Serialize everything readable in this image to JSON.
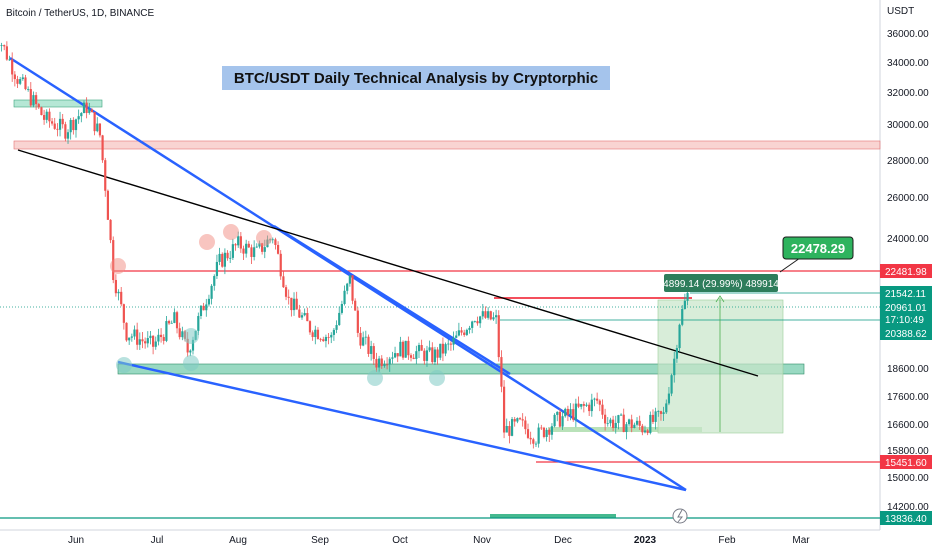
{
  "header": {
    "symbol_line": "Bitcoin / TetherUS, 1D, BINANCE"
  },
  "chart_data": {
    "type": "candlestick",
    "title": "BTC/USDT Daily Technical Analysis by Cryptorphic",
    "y_axis_unit": "USDT",
    "y_scale": "log",
    "y_ticks": [
      "36000.00",
      "34000.00",
      "32000.00",
      "30000.00",
      "28000.00",
      "26000.00",
      "24000.00",
      "18600.00",
      "17600.00",
      "16600.00",
      "15800.00",
      "15000.00",
      "14200.00"
    ],
    "x_ticks": [
      "Jun",
      "Jul",
      "Aug",
      "Sep",
      "Oct",
      "Nov",
      "Dec",
      "2023",
      "Feb",
      "Mar"
    ],
    "price_labels": [
      {
        "value": "22481.98",
        "color": "#f23645"
      },
      {
        "value": "21542.11",
        "color": "#089981"
      },
      {
        "value": "20961.01",
        "color": "#089981"
      },
      {
        "value": "17:10:49",
        "color": "#089981"
      },
      {
        "value": "20388.62",
        "color": "#089981"
      },
      {
        "value": "15451.60",
        "color": "#f23645"
      },
      {
        "value": "13836.40",
        "color": "#089981"
      }
    ],
    "annotations": {
      "target_callout": "22478.29",
      "measure_label": "4899.14 (29.99%) 489914"
    },
    "price_path": [
      [
        36500,
        "2022-05-01"
      ],
      [
        33000,
        "2022-05-10"
      ],
      [
        30500,
        "2022-05-20"
      ],
      [
        29800,
        "2022-05-28"
      ],
      [
        31200,
        "2022-06-05"
      ],
      [
        29500,
        "2022-06-10"
      ],
      [
        22500,
        "2022-06-15"
      ],
      [
        20000,
        "2022-06-20"
      ],
      [
        19500,
        "2022-06-30"
      ],
      [
        20500,
        "2022-07-08"
      ],
      [
        19300,
        "2022-07-13"
      ],
      [
        20800,
        "2022-07-18"
      ],
      [
        23000,
        "2022-07-25"
      ],
      [
        23800,
        "2022-08-01"
      ],
      [
        23400,
        "2022-08-08"
      ],
      [
        24200,
        "2022-08-14"
      ],
      [
        21300,
        "2022-08-20"
      ],
      [
        20200,
        "2022-08-28"
      ],
      [
        19800,
        "2022-09-05"
      ],
      [
        22200,
        "2022-09-12"
      ],
      [
        20000,
        "2022-09-15"
      ],
      [
        18900,
        "2022-09-22"
      ],
      [
        19400,
        "2022-10-01"
      ],
      [
        19100,
        "2022-10-13"
      ],
      [
        19500,
        "2022-10-20"
      ],
      [
        20700,
        "2022-10-29"
      ],
      [
        20500,
        "2022-11-06"
      ],
      [
        16500,
        "2022-11-09"
      ],
      [
        16700,
        "2022-11-15"
      ],
      [
        16300,
        "2022-11-21"
      ],
      [
        16800,
        "2022-11-28"
      ],
      [
        17100,
        "2022-12-05"
      ],
      [
        17500,
        "2022-12-14"
      ],
      [
        16800,
        "2022-12-18"
      ],
      [
        16700,
        "2022-12-28"
      ],
      [
        16600,
        "2022-12-31"
      ],
      [
        17000,
        "2023-01-08"
      ],
      [
        19000,
        "2023-01-12"
      ],
      [
        20500,
        "2023-01-14"
      ],
      [
        21542,
        "2023-01-17"
      ]
    ]
  }
}
